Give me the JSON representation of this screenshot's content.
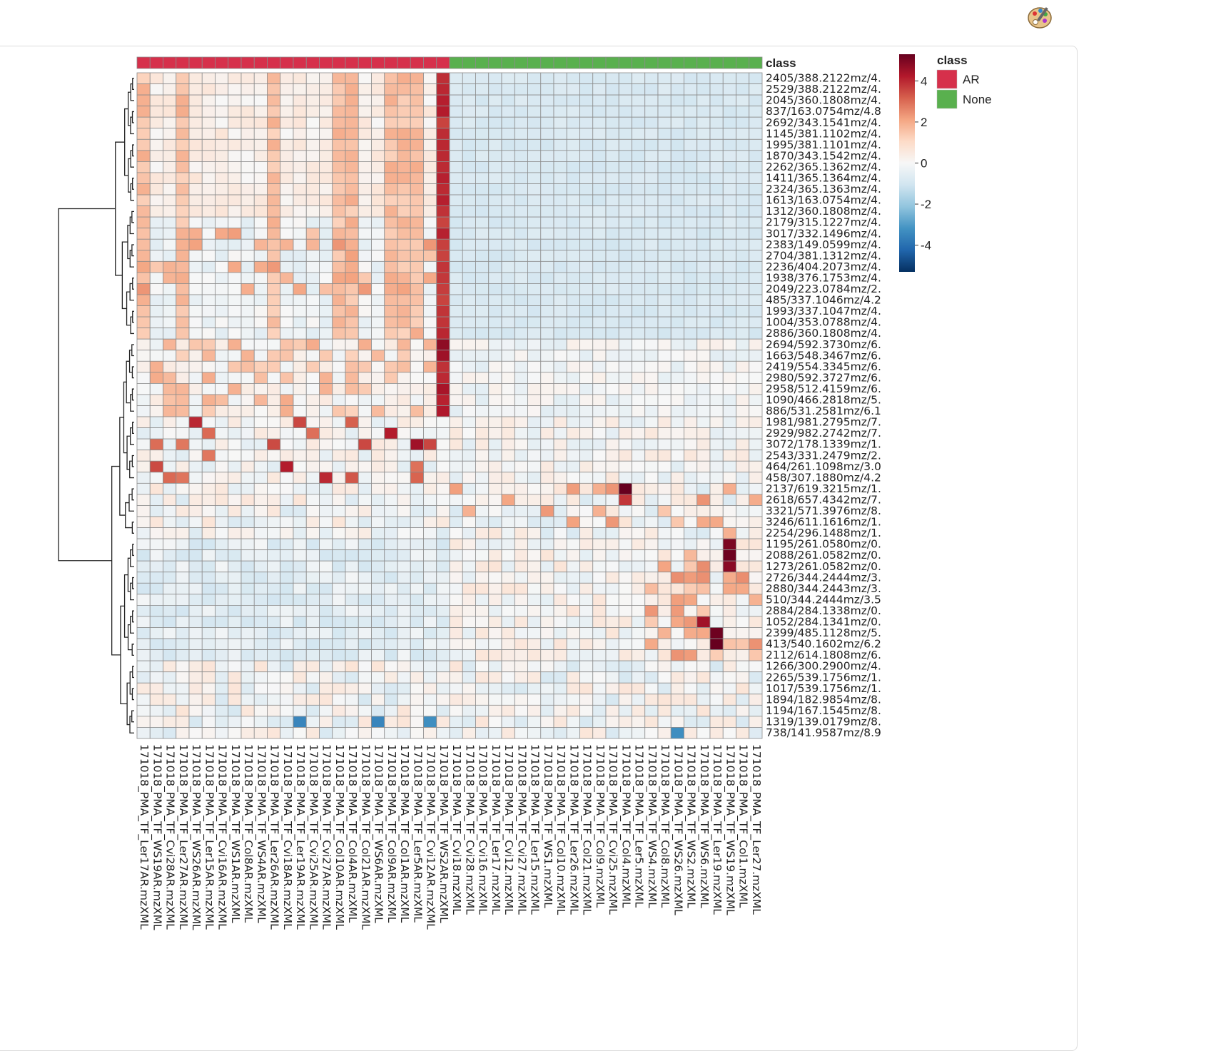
{
  "toolbar": {
    "palette_icon": "palette-icon"
  },
  "chart_data": {
    "type": "heatmap",
    "annotation_title": "class",
    "annotation_legend_title": "class",
    "classes": [
      {
        "name": "AR",
        "color": "#d6304b"
      },
      {
        "name": "None",
        "color": "#59b04e"
      }
    ],
    "color_scale": {
      "ticks": [
        4,
        2,
        0,
        -2,
        -4
      ],
      "range": [
        -5.3,
        5.3
      ],
      "stops": [
        "#053061",
        "#2166ac",
        "#4393c3",
        "#92c5de",
        "#d1e5f0",
        "#f7f7f7",
        "#fddbc7",
        "#f4a582",
        "#d6604d",
        "#b2182b",
        "#67001f"
      ]
    },
    "columns": [
      "171018_PMA_TF_Ler17AR.mzXML",
      "171018_PMA_TF_WS19AR.mzXML",
      "171018_PMA_TF_Cvi28AR.mzXML",
      "171018_PMA_TF_Ler27AR.mzXML",
      "171018_PMA_TF_WS26AR.mzXML",
      "171018_PMA_TF_Ler15AR.mzXML",
      "171018_PMA_TF_Cvi16AR.mzXML",
      "171018_PMA_TF_WS1AR.mzXML",
      "171018_PMA_TF_Col8AR.mzXML",
      "171018_PMA_TF_WS4AR.mzXML",
      "171018_PMA_TF_Ler26AR.mzXML",
      "171018_PMA_TF_Cvi18AR.mzXML",
      "171018_PMA_TF_Ler19AR.mzXML",
      "171018_PMA_TF_Cvi25AR.mzXML",
      "171018_PMA_TF_Cvi27AR.mzXML",
      "171018_PMA_TF_Col10AR.mzXML",
      "171018_PMA_TF_Col4AR.mzXML",
      "171018_PMA_TF_Col21AR.mzXML",
      "171018_PMA_TF_WS6AR.mzXML",
      "171018_PMA_TF_Col9AR.mzXML",
      "171018_PMA_TF_Col1AR.mzXML",
      "171018_PMA_TF_Ler5AR.mzXML",
      "171018_PMA_TF_Cvi12AR.mzXML",
      "171018_PMA_TF_WS2AR.mzXML",
      "171018_PMA_TF_Cvi18.mzXML",
      "171018_PMA_TF_Cvi28.mzXML",
      "171018_PMA_TF_Cvi16.mzXML",
      "171018_PMA_TF_Ler17.mzXML",
      "171018_PMA_TF_Cvi12.mzXML",
      "171018_PMA_TF_Cvi27.mzXML",
      "171018_PMA_TF_Ler15.mzXML",
      "171018_PMA_TF_WS1.mzXML",
      "171018_PMA_TF_Col10.mzXML",
      "171018_PMA_TF_Ler26.mzXML",
      "171018_PMA_TF_Col21.mzXML",
      "171018_PMA_TF_Col9.mzXML",
      "171018_PMA_TF_Cvi25.mzXML",
      "171018_PMA_TF_Col4.mzXML",
      "171018_PMA_TF_Ler5.mzXML",
      "171018_PMA_TF_WS4.mzXML",
      "171018_PMA_TF_Col8.mzXML",
      "171018_PMA_TF_WS26.mzXML",
      "171018_PMA_TF_WS2.mzXML",
      "171018_PMA_TF_WS6.mzXML",
      "171018_PMA_TF_Ler19.mzXML",
      "171018_PMA_TF_WS19.mzXML",
      "171018_PMA_TF_Col1.mzXML",
      "171018_PMA_TF_Ler27.mzXML"
    ],
    "column_class": [
      "AR",
      "AR",
      "AR",
      "AR",
      "AR",
      "AR",
      "AR",
      "AR",
      "AR",
      "AR",
      "AR",
      "AR",
      "AR",
      "AR",
      "AR",
      "AR",
      "AR",
      "AR",
      "AR",
      "AR",
      "AR",
      "AR",
      "AR",
      "AR",
      "None",
      "None",
      "None",
      "None",
      "None",
      "None",
      "None",
      "None",
      "None",
      "None",
      "None",
      "None",
      "None",
      "None",
      "None",
      "None",
      "None",
      "None",
      "None",
      "None",
      "None",
      "None",
      "None",
      "None"
    ],
    "rows": [
      "2405/388.2122mz/4.",
      "2529/388.2122mz/4.",
      "2045/360.1808mz/4.",
      "837/163.0754mz/4.8",
      "2692/343.1541mz/4.",
      "1145/381.1102mz/4.",
      "1995/381.1101mz/4.",
      "1870/343.1542mz/4.",
      "2262/365.1362mz/4.",
      "1411/365.1364mz/4.",
      "2324/365.1363mz/4.",
      "1613/163.0754mz/4.",
      "1312/360.1808mz/4.",
      "2179/315.1227mz/4.",
      "3017/332.1496mz/4.",
      "2383/149.0599mz/4.",
      "2704/381.1312mz/4.",
      "2236/404.2073mz/4.",
      "1938/376.1753mz/4.",
      "2049/223.0784mz/2.",
      "485/337.1046mz/4.2",
      "1993/337.1047mz/4.",
      "1004/353.0788mz/4.",
      "2886/360.1808mz/4.",
      "2694/592.3730mz/6.",
      "1663/548.3467mz/6.",
      "2419/554.3345mz/6.",
      "2980/592.3727mz/6.",
      "2958/512.4159mz/6.",
      "1090/466.2818mz/5.",
      "886/531.2581mz/6.1",
      "1981/981.2795mz/7.",
      "2929/982.2742mz/7.",
      "3072/178.1339mz/1.",
      "2543/331.2479mz/2.",
      "464/261.1098mz/3.0",
      "458/307.1880mz/4.2",
      "2137/619.3215mz/1.",
      "2618/657.4342mz/7.",
      "3321/571.3976mz/8.",
      "3246/611.1616mz/1.",
      "2254/296.1488mz/1.",
      "1195/261.0580mz/0.",
      "2088/261.0582mz/0.",
      "1273/261.0582mz/0.",
      "2726/344.2444mz/3.",
      "2880/344.2443mz/3.",
      "510/344.2444mz/3.5",
      "2884/284.1338mz/0.",
      "1052/284.1341mz/0.",
      "2399/485.1128mz/5.",
      "413/540.1602mz/6.2",
      "2112/614.1808mz/6.",
      "1266/300.2900mz/4.",
      "2265/539.1756mz/1.",
      "1017/539.1756mz/1.",
      "1894/182.9854mz/8.",
      "1194/167.1545mz/8.",
      "1319/139.0179mz/8.",
      "738/141.9587mz/8.9"
    ]
  }
}
